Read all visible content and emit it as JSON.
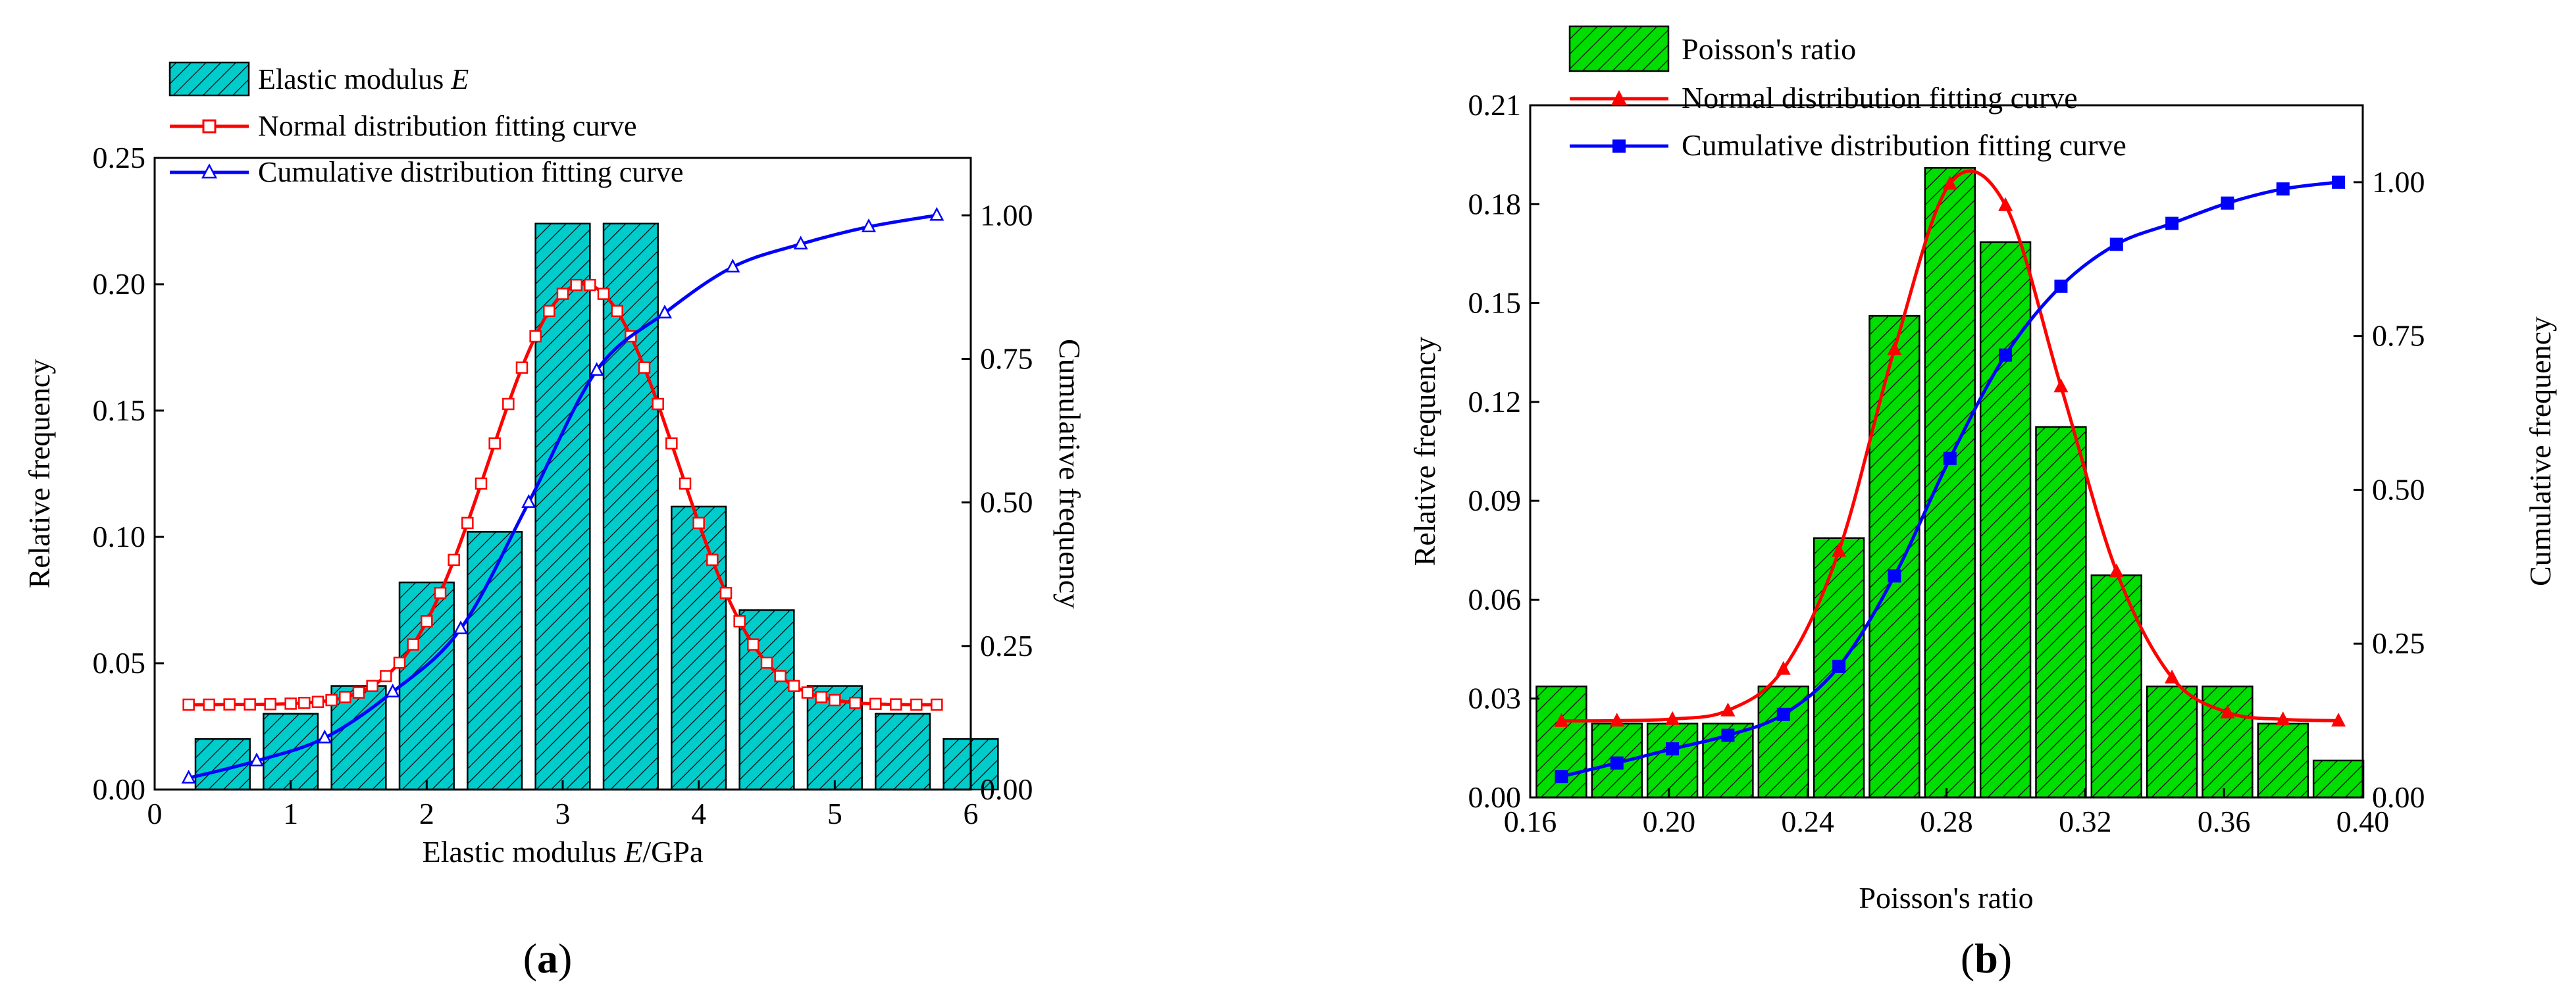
{
  "chart_data": [
    {
      "type": "bar",
      "panel_label": "(a)",
      "panel_letter": "a",
      "xlabel": "Elastic modulus E/GPa",
      "ylabel": "Relative frequency",
      "y2label": "Cumulative frequency",
      "xlim": [
        0,
        6
      ],
      "ylim": [
        0,
        0.25
      ],
      "y2lim": [
        0,
        1.1
      ],
      "xticks": [
        "0",
        "1",
        "2",
        "3",
        "4",
        "5",
        "6"
      ],
      "xtick_values": [
        0,
        1,
        2,
        3,
        4,
        5,
        6
      ],
      "yticks": [
        "0.00",
        "0.05",
        "0.10",
        "0.15",
        "0.20",
        "0.25"
      ],
      "ytick_values": [
        0,
        0.05,
        0.1,
        0.15,
        0.2,
        0.25
      ],
      "y2ticks": [
        "0.00",
        "0.25",
        "0.50",
        "0.75",
        "1.00"
      ],
      "y2tick_values": [
        0,
        0.25,
        0.5,
        0.75,
        1.0
      ],
      "legend_position": "top-left",
      "bar_width": 0.4,
      "bar_color": "#00CCCC",
      "hatch": "diagonal",
      "bars": {
        "name": "Elastic modulus E",
        "centers": [
          0.5,
          1.0,
          1.5,
          2.0,
          2.5,
          3.0,
          3.5,
          4.0,
          4.5,
          5.0,
          5.5,
          6.0
        ],
        "values": [
          0.02,
          0.03,
          0.041,
          0.082,
          0.102,
          0.224,
          0.224,
          0.112,
          0.071,
          0.041,
          0.03,
          0.02
        ]
      },
      "series": [
        {
          "name": "Normal distribution fitting curve",
          "axis": "left",
          "color": "#FF0000",
          "marker": "square-open",
          "x": [
            0.25,
            0.4,
            0.55,
            0.7,
            0.85,
            1.0,
            1.1,
            1.2,
            1.3,
            1.4,
            1.5,
            1.6,
            1.7,
            1.8,
            1.9,
            2.0,
            2.1,
            2.2,
            2.3,
            2.4,
            2.5,
            2.6,
            2.7,
            2.8,
            2.9,
            3.0,
            3.1,
            3.2,
            3.3,
            3.4,
            3.5,
            3.6,
            3.7,
            3.8,
            3.9,
            4.0,
            4.1,
            4.2,
            4.3,
            4.4,
            4.5,
            4.6,
            4.7,
            4.8,
            4.9,
            5.0,
            5.15,
            5.3,
            5.45,
            5.6,
            5.75
          ],
          "values": [
            0.0336,
            0.0336,
            0.0337,
            0.0337,
            0.0338,
            0.034,
            0.0343,
            0.0347,
            0.0354,
            0.0366,
            0.0384,
            0.041,
            0.0449,
            0.0502,
            0.0574,
            0.0666,
            0.0778,
            0.0909,
            0.1055,
            0.1211,
            0.137,
            0.1526,
            0.167,
            0.1794,
            0.1894,
            0.1962,
            0.1997,
            0.1997,
            0.1962,
            0.1894,
            0.1794,
            0.167,
            0.1526,
            0.137,
            0.1211,
            0.1055,
            0.0909,
            0.0778,
            0.0666,
            0.0574,
            0.0502,
            0.0449,
            0.041,
            0.0384,
            0.0366,
            0.0354,
            0.0343,
            0.0339,
            0.0337,
            0.0336,
            0.0336
          ]
        },
        {
          "name": "Cumulative distribution fitting curve",
          "axis": "right",
          "color": "#0000FF",
          "marker": "triangle-open",
          "x": [
            0.25,
            0.75,
            1.25,
            1.75,
            2.25,
            2.75,
            3.25,
            3.75,
            4.25,
            4.75,
            5.25,
            5.75
          ],
          "values": [
            0.02,
            0.05,
            0.09,
            0.17,
            0.28,
            0.5,
            0.73,
            0.83,
            0.91,
            0.95,
            0.98,
            1.0
          ]
        }
      ]
    },
    {
      "type": "bar",
      "panel_label": "(b)",
      "panel_letter": "b",
      "xlabel": "Poisson's ratio",
      "ylabel": "Relative frequency",
      "y2label": "Cumulative frequency",
      "xlim": [
        0.16,
        0.4
      ],
      "ylim": [
        0,
        0.21
      ],
      "y2lim": [
        0,
        1.125
      ],
      "xticks": [
        "0.16",
        "0.20",
        "0.24",
        "0.28",
        "0.32",
        "0.36",
        "0.40"
      ],
      "xtick_values": [
        0.16,
        0.2,
        0.24,
        0.28,
        0.32,
        0.36,
        0.4
      ],
      "yticks": [
        "0.00",
        "0.03",
        "0.06",
        "0.09",
        "0.12",
        "0.15",
        "0.18",
        "0.21"
      ],
      "ytick_values": [
        0,
        0.03,
        0.06,
        0.09,
        0.12,
        0.15,
        0.18,
        0.21
      ],
      "y2ticks": [
        "0.00",
        "0.25",
        "0.50",
        "0.75",
        "1.00"
      ],
      "y2tick_values": [
        0,
        0.25,
        0.5,
        0.75,
        1.0
      ],
      "legend_position": "top-left",
      "bar_width": 0.0144,
      "bar_color": "#00DD00",
      "hatch": "diagonal",
      "bars": {
        "name": "Poisson's ratio",
        "centers": [
          0.169,
          0.185,
          0.201,
          0.217,
          0.233,
          0.249,
          0.265,
          0.281,
          0.297,
          0.313,
          0.329,
          0.345,
          0.361,
          0.377,
          0.393
        ],
        "values": [
          0.0337,
          0.0224,
          0.0224,
          0.0224,
          0.0337,
          0.0787,
          0.1461,
          0.191,
          0.1685,
          0.1124,
          0.0674,
          0.0337,
          0.0337,
          0.0224,
          0.0112
        ]
      },
      "series": [
        {
          "name": "Normal distribution fitting curve",
          "axis": "left",
          "color": "#FF0000",
          "marker": "triangle-filled",
          "x": [
            0.169,
            0.185,
            0.201,
            0.217,
            0.233,
            0.249,
            0.265,
            0.281,
            0.297,
            0.313,
            0.329,
            0.345,
            0.361,
            0.377,
            0.393
          ],
          "values": [
            0.0232,
            0.0233,
            0.0238,
            0.0264,
            0.039,
            0.0748,
            0.136,
            0.1862,
            0.1797,
            0.1247,
            0.0686,
            0.0364,
            0.0258,
            0.0237,
            0.0233
          ]
        },
        {
          "name": "Cumulative distribution fitting curve",
          "axis": "right",
          "color": "#0000FF",
          "marker": "square-filled",
          "x": [
            0.169,
            0.185,
            0.201,
            0.217,
            0.233,
            0.249,
            0.265,
            0.281,
            0.297,
            0.313,
            0.329,
            0.345,
            0.361,
            0.377,
            0.393
          ],
          "values": [
            0.034,
            0.056,
            0.079,
            0.101,
            0.135,
            0.213,
            0.36,
            0.551,
            0.719,
            0.831,
            0.899,
            0.933,
            0.966,
            0.989,
            1.0
          ]
        }
      ]
    }
  ]
}
